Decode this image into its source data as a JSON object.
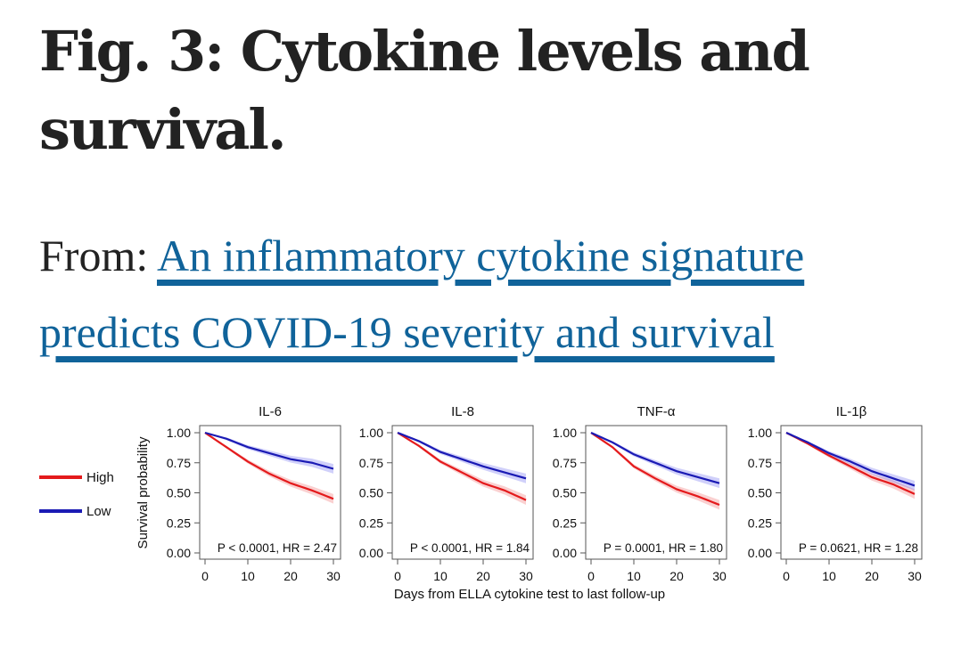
{
  "figure": {
    "title": "Fig. 3: Cytokine levels and survival.",
    "from_label": "From:",
    "article_link": "An inflammatory cytokine signature predicts COVID-19 severity and survival"
  },
  "chart_data": {
    "type": "line",
    "ylabel": "Survival probability",
    "xlabel": "Days from ELLA cytokine test to last follow-up",
    "xlim": [
      0,
      30
    ],
    "ylim": [
      0,
      1
    ],
    "xticks": [
      0,
      10,
      20,
      30
    ],
    "yticks": [
      "0.00",
      "0.25",
      "0.50",
      "0.75",
      "1.00"
    ],
    "legend": {
      "placement": "left",
      "entries": [
        {
          "name": "High",
          "color": "#e41a1c"
        },
        {
          "name": "Low",
          "color": "#1a1ab4"
        }
      ]
    },
    "x": [
      0,
      5,
      10,
      15,
      20,
      25,
      30
    ],
    "panels": [
      {
        "title": "IL-6",
        "annotation": "P < 0.0001, HR = 2.47",
        "series": [
          {
            "name": "High",
            "values": [
              1.0,
              0.88,
              0.76,
              0.66,
              0.58,
              0.52,
              0.45
            ]
          },
          {
            "name": "Low",
            "values": [
              1.0,
              0.95,
              0.88,
              0.83,
              0.78,
              0.75,
              0.7
            ]
          }
        ]
      },
      {
        "title": "IL-8",
        "annotation": "P < 0.0001, HR = 1.84",
        "series": [
          {
            "name": "High",
            "values": [
              1.0,
              0.89,
              0.76,
              0.67,
              0.58,
              0.52,
              0.44
            ]
          },
          {
            "name": "Low",
            "values": [
              1.0,
              0.93,
              0.84,
              0.78,
              0.72,
              0.67,
              0.62
            ]
          }
        ]
      },
      {
        "title": "TNF-α",
        "annotation": "P = 0.0001,  HR = 1.80",
        "series": [
          {
            "name": "High",
            "values": [
              1.0,
              0.88,
              0.72,
              0.62,
              0.53,
              0.47,
              0.4
            ]
          },
          {
            "name": "Low",
            "values": [
              1.0,
              0.92,
              0.82,
              0.75,
              0.68,
              0.63,
              0.58
            ]
          }
        ]
      },
      {
        "title": "IL-1β",
        "annotation": "P = 0.0621,  HR = 1.28",
        "series": [
          {
            "name": "High",
            "values": [
              1.0,
              0.91,
              0.81,
              0.72,
              0.63,
              0.57,
              0.49
            ]
          },
          {
            "name": "Low",
            "values": [
              1.0,
              0.92,
              0.83,
              0.76,
              0.68,
              0.62,
              0.56
            ]
          }
        ]
      }
    ]
  }
}
